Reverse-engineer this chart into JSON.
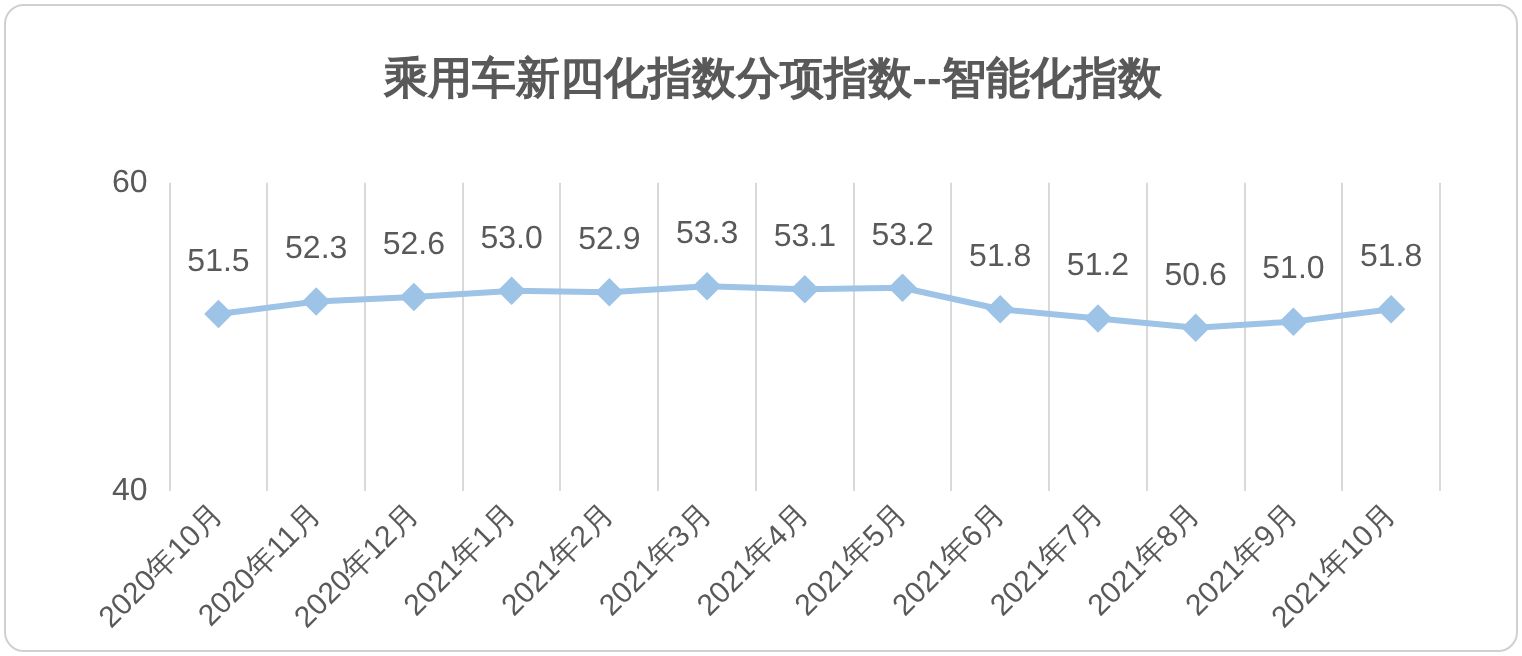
{
  "chart_data": {
    "type": "line",
    "title": "乘用车新四化指数分项指数--智能化指数",
    "categories": [
      "2020年10月",
      "2020年11月",
      "2020年12月",
      "2021年1月",
      "2021年2月",
      "2021年3月",
      "2021年4月",
      "2021年5月",
      "2021年6月",
      "2021年7月",
      "2021年8月",
      "2021年9月",
      "2021年10月"
    ],
    "series": [
      {
        "color": "#9dc3e6",
        "values": [
          51.5,
          52.3,
          52.6,
          53.0,
          52.9,
          53.3,
          53.1,
          53.2,
          51.8,
          51.2,
          50.6,
          51.0,
          51.8
        ],
        "value_labels": [
          "51.5",
          "52.3",
          "52.6",
          "53.0",
          "52.9",
          "53.3",
          "53.1",
          "53.2",
          "51.8",
          "51.2",
          "50.6",
          "51.0",
          "51.8"
        ]
      }
    ],
    "ylim": [
      40,
      60
    ],
    "yticks": [
      40,
      60
    ],
    "grid": "x",
    "legend": false,
    "marker": "diamond",
    "line_style": "solid"
  }
}
